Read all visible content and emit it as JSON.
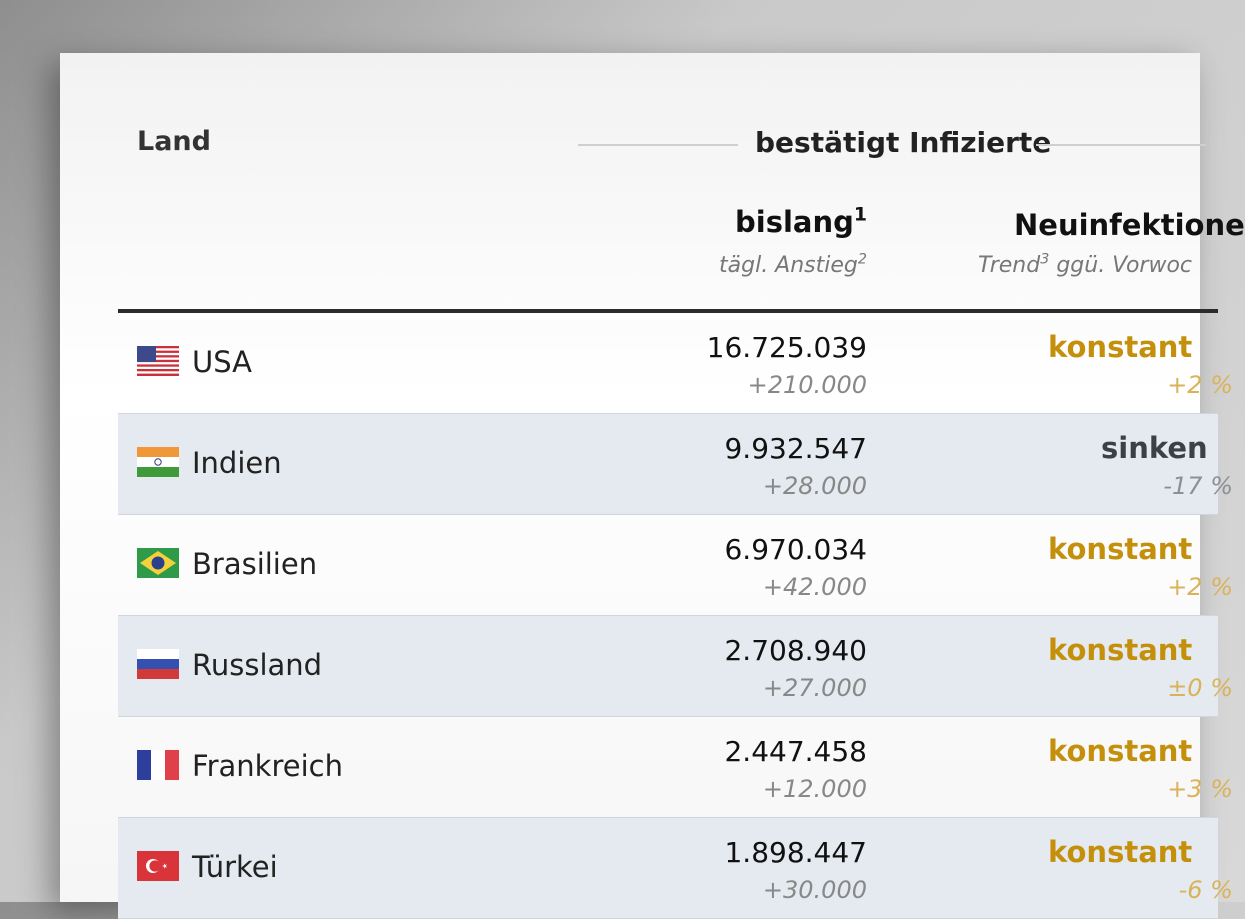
{
  "header": {
    "land_label": "Land",
    "group_title": "bestätigt Infizierte",
    "col1_title": "bislang",
    "col1_sup": "1",
    "col1_sub": "tägl. Anstieg",
    "col1_sub_sup": "2",
    "col2_title": "Neuinfektione",
    "col2_sub_a": "Trend",
    "col2_sub_sup": "3",
    "col2_sub_b": " ggü. Vorwoc"
  },
  "colors": {
    "konstant": "#c4900b",
    "konstant_pct": "#d9b25a",
    "sinken": "#3a4248",
    "sinken_pct": "#8a9096"
  },
  "rows": [
    {
      "country": "USA",
      "flag": "us-flag",
      "total": "16.725.039",
      "increase": "+210.000",
      "trend": "konstant",
      "pct": "+2 %"
    },
    {
      "country": "Indien",
      "flag": "india-flag",
      "total": "9.932.547",
      "increase": "+28.000",
      "trend": "sinken",
      "pct": "-17 %"
    },
    {
      "country": "Brasilien",
      "flag": "brazil-flag",
      "total": "6.970.034",
      "increase": "+42.000",
      "trend": "konstant",
      "pct": "+2 %"
    },
    {
      "country": "Russland",
      "flag": "russia-flag",
      "total": "2.708.940",
      "increase": "+27.000",
      "trend": "konstant",
      "pct": "±0 %"
    },
    {
      "country": "Frankreich",
      "flag": "france-flag",
      "total": "2.447.458",
      "increase": "+12.000",
      "trend": "konstant",
      "pct": "+3 %"
    },
    {
      "country": "Türkei",
      "flag": "turkey-flag",
      "total": "1.898.447",
      "increase": "+30.000",
      "trend": "konstant",
      "pct": "-6 %"
    }
  ]
}
